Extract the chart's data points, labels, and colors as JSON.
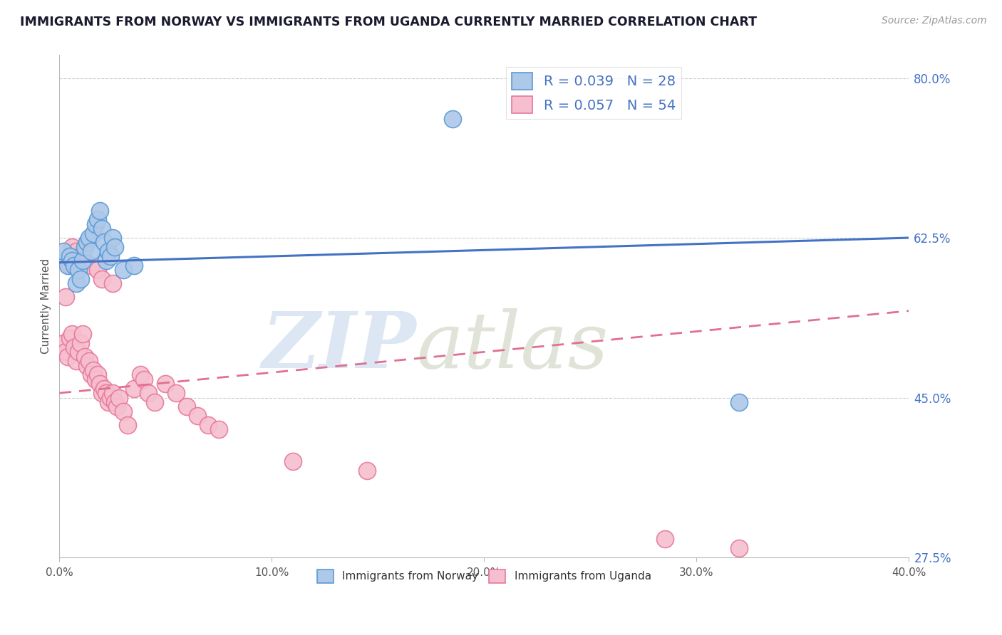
{
  "title": "IMMIGRANTS FROM NORWAY VS IMMIGRANTS FROM UGANDA CURRENTLY MARRIED CORRELATION CHART",
  "source_text": "Source: ZipAtlas.com",
  "ylabel": "Currently Married",
  "xlim": [
    0.0,
    0.4
  ],
  "ylim": [
    0.275,
    0.825
  ],
  "yticks": [
    0.275,
    0.45,
    0.625,
    0.8
  ],
  "ytick_labels": [
    "27.5%",
    "45.0%",
    "62.5%",
    "80.0%"
  ],
  "xticks": [
    0.0,
    0.1,
    0.2,
    0.3,
    0.4
  ],
  "xtick_labels": [
    "0.0%",
    "10.0%",
    "20.0%",
    "30.0%",
    "40.0%"
  ],
  "norway_R": 0.039,
  "norway_N": 28,
  "uganda_R": 0.057,
  "uganda_N": 54,
  "norway_color": "#adc8e8",
  "uganda_color": "#f5bfcf",
  "norway_edge_color": "#5b9bd5",
  "uganda_edge_color": "#e8789a",
  "trend_norway_color": "#4472c4",
  "trend_uganda_color": "#e07090",
  "legend_label_norway": "Immigrants from Norway",
  "legend_label_uganda": "Immigrants from Uganda",
  "norway_trend_x0": 0.0,
  "norway_trend_y0": 0.598,
  "norway_trend_x1": 0.4,
  "norway_trend_y1": 0.625,
  "uganda_trend_x0": 0.0,
  "uganda_trend_y0": 0.455,
  "uganda_trend_x1": 0.4,
  "uganda_trend_y1": 0.545,
  "norway_x": [
    0.002,
    0.004,
    0.005,
    0.006,
    0.007,
    0.008,
    0.009,
    0.01,
    0.011,
    0.012,
    0.013,
    0.014,
    0.015,
    0.016,
    0.017,
    0.018,
    0.019,
    0.02,
    0.021,
    0.022,
    0.023,
    0.024,
    0.025,
    0.026,
    0.03,
    0.035,
    0.185,
    0.32
  ],
  "norway_y": [
    0.61,
    0.595,
    0.605,
    0.6,
    0.595,
    0.575,
    0.59,
    0.58,
    0.6,
    0.615,
    0.62,
    0.625,
    0.61,
    0.63,
    0.64,
    0.645,
    0.655,
    0.635,
    0.62,
    0.6,
    0.61,
    0.605,
    0.625,
    0.615,
    0.59,
    0.595,
    0.755,
    0.445
  ],
  "uganda_x": [
    0.002,
    0.003,
    0.004,
    0.005,
    0.006,
    0.007,
    0.008,
    0.009,
    0.01,
    0.011,
    0.012,
    0.013,
    0.014,
    0.015,
    0.016,
    0.017,
    0.018,
    0.019,
    0.02,
    0.021,
    0.022,
    0.023,
    0.024,
    0.025,
    0.026,
    0.027,
    0.028,
    0.03,
    0.032,
    0.035,
    0.038,
    0.04,
    0.042,
    0.045,
    0.05,
    0.055,
    0.06,
    0.065,
    0.07,
    0.075,
    0.003,
    0.005,
    0.006,
    0.008,
    0.01,
    0.012,
    0.015,
    0.018,
    0.02,
    0.025,
    0.11,
    0.145,
    0.285,
    0.32
  ],
  "uganda_y": [
    0.51,
    0.5,
    0.495,
    0.515,
    0.52,
    0.505,
    0.49,
    0.5,
    0.51,
    0.52,
    0.495,
    0.485,
    0.49,
    0.475,
    0.48,
    0.47,
    0.475,
    0.465,
    0.455,
    0.46,
    0.455,
    0.445,
    0.45,
    0.455,
    0.445,
    0.44,
    0.45,
    0.435,
    0.42,
    0.46,
    0.475,
    0.47,
    0.455,
    0.445,
    0.465,
    0.455,
    0.44,
    0.43,
    0.42,
    0.415,
    0.56,
    0.595,
    0.615,
    0.61,
    0.605,
    0.6,
    0.595,
    0.59,
    0.58,
    0.575,
    0.38,
    0.37,
    0.295,
    0.285
  ]
}
